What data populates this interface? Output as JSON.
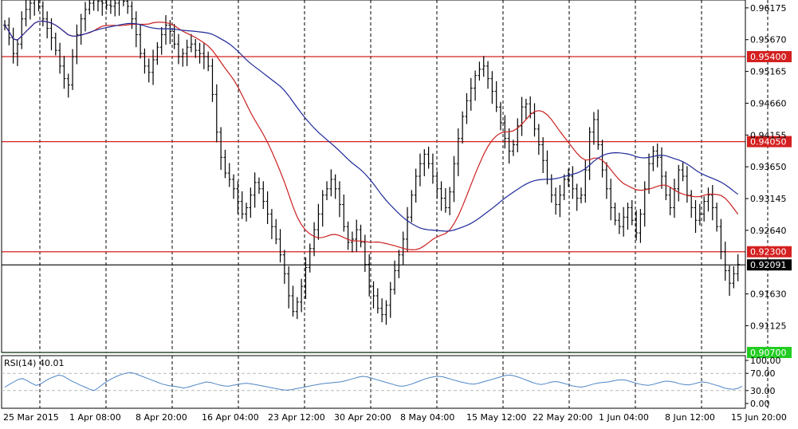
{
  "chart_data": {
    "type": "candlestick",
    "main": {
      "y_ticks": [
        "0.96175",
        "0.95670",
        "0.95165",
        "0.94660",
        "0.94155",
        "0.93650",
        "0.93145",
        "0.92640",
        "0.91630",
        "0.91125"
      ],
      "ylim": [
        0.907,
        0.963
      ],
      "horizontal_levels": [
        {
          "value": 0.954,
          "label": "0.95400",
          "color": "#d42020"
        },
        {
          "value": 0.9405,
          "label": "0.94050",
          "color": "#d42020"
        },
        {
          "value": 0.923,
          "label": "0.92300",
          "color": "#d42020"
        },
        {
          "value": 0.92091,
          "label": "0.92091",
          "color": "#000000"
        },
        {
          "value": 0.907,
          "label": "0.90700",
          "color": "#22cc22"
        }
      ],
      "close_series": [
        0.959,
        0.957,
        0.9545,
        0.956,
        0.96,
        0.9615,
        0.9625,
        0.964,
        0.962,
        0.96,
        0.9585,
        0.957,
        0.955,
        0.9525,
        0.9505,
        0.9495,
        0.954,
        0.9575,
        0.96,
        0.9615,
        0.9625,
        0.963,
        0.9628,
        0.9625,
        0.9622,
        0.962,
        0.9625,
        0.963,
        0.9628,
        0.962,
        0.96,
        0.9575,
        0.9545,
        0.9525,
        0.9515,
        0.9535,
        0.9555,
        0.9575,
        0.959,
        0.958,
        0.956,
        0.954,
        0.9545,
        0.9555,
        0.956,
        0.955,
        0.9545,
        0.954,
        0.9525,
        0.948,
        0.942,
        0.938,
        0.9355,
        0.9345,
        0.933,
        0.931,
        0.929,
        0.93,
        0.932,
        0.934,
        0.933,
        0.931,
        0.929,
        0.927,
        0.925,
        0.9225,
        0.9195,
        0.916,
        0.9135,
        0.915,
        0.9175,
        0.9205,
        0.9235,
        0.9265,
        0.929,
        0.932,
        0.933,
        0.9345,
        0.933,
        0.9305,
        0.927,
        0.9245,
        0.925,
        0.9265,
        0.9245,
        0.921,
        0.9175,
        0.916,
        0.914,
        0.913,
        0.9145,
        0.917,
        0.92,
        0.9225,
        0.925,
        0.9285,
        0.932,
        0.935,
        0.937,
        0.9385,
        0.937,
        0.935,
        0.933,
        0.9315,
        0.93,
        0.9325,
        0.937,
        0.941,
        0.9445,
        0.947,
        0.949,
        0.951,
        0.952,
        0.9525,
        0.9505,
        0.9485,
        0.946,
        0.9435,
        0.941,
        0.939,
        0.94,
        0.943,
        0.946,
        0.9465,
        0.945,
        0.9425,
        0.94,
        0.9375,
        0.9345,
        0.932,
        0.9305,
        0.932,
        0.9345,
        0.935,
        0.933,
        0.9315,
        0.932,
        0.936,
        0.942,
        0.944,
        0.94,
        0.936,
        0.933,
        0.93,
        0.928,
        0.927,
        0.9285,
        0.93,
        0.928,
        0.926,
        0.929,
        0.933,
        0.937,
        0.939,
        0.938,
        0.935,
        0.932,
        0.93,
        0.933,
        0.936,
        0.935,
        0.932,
        0.93,
        0.928,
        0.929,
        0.931,
        0.932,
        0.93,
        0.927,
        0.923,
        0.92,
        0.918,
        0.9195,
        0.921
      ]
    },
    "rsi": {
      "title": "RSI(14) 40.01",
      "y_ticks": [
        "100.00",
        "70.00",
        "30.00",
        "0.00"
      ],
      "levels": [
        70,
        30
      ],
      "ylim": [
        0,
        100
      ],
      "values": [
        38,
        44,
        50,
        56,
        58,
        53,
        47,
        42,
        45,
        52,
        58,
        62,
        66,
        64,
        58,
        52,
        47,
        42,
        38,
        33,
        30,
        37,
        45,
        52,
        58,
        63,
        67,
        70,
        72,
        70,
        66,
        62,
        58,
        54,
        50,
        46,
        43,
        41,
        40,
        38,
        36,
        38,
        41,
        44,
        47,
        50,
        49,
        46,
        43,
        41,
        40,
        42,
        44,
        46,
        47,
        46,
        44,
        42,
        40,
        38,
        36,
        34,
        32,
        31,
        32,
        34,
        36,
        38,
        40,
        42,
        44,
        46,
        47,
        48,
        49,
        50,
        52,
        55,
        58,
        61,
        63,
        62,
        59,
        56,
        53,
        50,
        47,
        44,
        41,
        40,
        42,
        45,
        49,
        53,
        57,
        60,
        62,
        63,
        62,
        59,
        56,
        53,
        50,
        48,
        46,
        45,
        47,
        50,
        53,
        56,
        59,
        62,
        65,
        66,
        64,
        61,
        57,
        53,
        49,
        46,
        44,
        46,
        49,
        51,
        50,
        47,
        44,
        41,
        39,
        38,
        40,
        43,
        46,
        48,
        49,
        50,
        52,
        54,
        55,
        54,
        51,
        48,
        45,
        43,
        42,
        44,
        47,
        50,
        52,
        51,
        49,
        46,
        44,
        43,
        45,
        48,
        50,
        49,
        46,
        43,
        40,
        36,
        34,
        33,
        35,
        40
      ]
    },
    "x_labels": [
      "25 Mar 2015",
      "1 Apr 08:00",
      "8 Apr 20:00",
      "16 Apr 04:00",
      "23 Apr 12:00",
      "30 Apr 20:00",
      "8 May 04:00",
      "15 May 12:00",
      "22 May 20:00",
      "1 Jun 04:00",
      "8 Jun 12:00",
      "15 Jun 20:00"
    ],
    "moving_averages": [
      {
        "color": "#cc2020",
        "period": 20
      },
      {
        "color": "#1f2a9a",
        "period": 50
      }
    ],
    "grid": "vertical-dashed"
  },
  "colors": {
    "candles": "#000000",
    "rsi_line": "#4f86c6",
    "rsi_level": "#b8b8b8"
  }
}
